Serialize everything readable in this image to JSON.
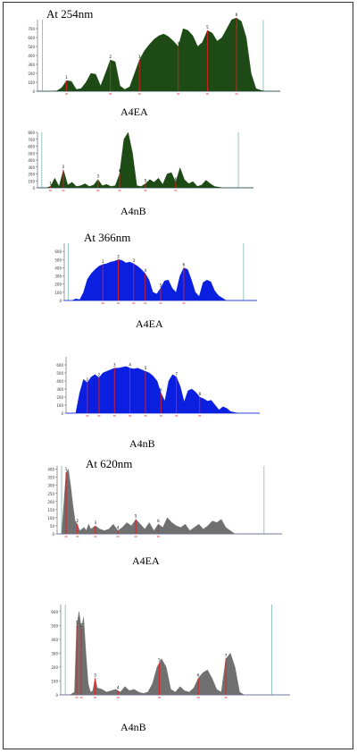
{
  "figure": {
    "headings": [
      "At 254nm",
      "At 366nm",
      "At 620nm"
    ]
  },
  "colors": {
    "green_fill": "#1e4a16",
    "blue_fill": "#0b1fe0",
    "gray_fill": "#707070",
    "baseline": "#3b57d6",
    "marker": "#e02020",
    "vline": "#7ab8b0",
    "axis": "#555555"
  },
  "chart_data": [
    {
      "type": "area",
      "id": "254-A4EA",
      "heading": "At 254nm",
      "caption": "A4EA",
      "fill": "#1e4a16",
      "x": [
        0.0,
        0.05,
        0.08,
        0.1,
        0.12,
        0.14,
        0.16,
        0.18,
        0.2,
        0.22,
        0.24,
        0.26,
        0.28,
        0.3,
        0.32,
        0.34,
        0.36,
        0.38,
        0.4,
        0.42,
        0.44,
        0.46,
        0.48,
        0.5,
        0.52,
        0.54,
        0.56,
        0.58,
        0.6,
        0.62,
        0.64,
        0.66,
        0.68,
        0.7,
        0.72,
        0.74,
        0.76,
        0.78,
        0.8,
        0.82,
        0.84,
        0.86,
        0.88,
        0.9,
        0.92,
        0.94,
        0.96,
        1.0
      ],
      "y": [
        0,
        0,
        5,
        40,
        120,
        110,
        20,
        30,
        100,
        200,
        190,
        60,
        200,
        350,
        330,
        60,
        20,
        50,
        200,
        350,
        450,
        520,
        580,
        620,
        640,
        610,
        560,
        500,
        700,
        680,
        620,
        500,
        550,
        680,
        650,
        560,
        600,
        700,
        800,
        820,
        780,
        600,
        200,
        30,
        10,
        0,
        0,
        0
      ],
      "ylim": [
        0,
        800
      ],
      "yticks": [
        0,
        100,
        200,
        300,
        400,
        500,
        600,
        700
      ],
      "markers": [
        0.12,
        0.3,
        0.42,
        0.58,
        0.7,
        0.82
      ],
      "peak_labels": [
        "1",
        "2",
        "3",
        "4",
        "5",
        "6"
      ],
      "vlines": [
        0.02,
        0.93
      ]
    },
    {
      "type": "area",
      "id": "254-A4nB",
      "caption": "A4nB",
      "fill": "#1e4a16",
      "x": [
        0.0,
        0.04,
        0.06,
        0.08,
        0.1,
        0.12,
        0.14,
        0.16,
        0.18,
        0.2,
        0.22,
        0.24,
        0.26,
        0.28,
        0.3,
        0.32,
        0.34,
        0.36,
        0.38,
        0.4,
        0.42,
        0.44,
        0.46,
        0.48,
        0.5,
        0.52,
        0.54,
        0.56,
        0.58,
        0.6,
        0.62,
        0.64,
        0.66,
        0.68,
        0.7,
        0.72,
        0.74,
        0.76,
        0.78,
        0.8,
        0.82,
        0.84,
        0.86,
        0.88,
        0.9,
        0.92,
        0.95,
        1.0
      ],
      "y": [
        0,
        0,
        20,
        140,
        20,
        260,
        40,
        80,
        20,
        30,
        60,
        20,
        40,
        120,
        30,
        50,
        20,
        30,
        200,
        700,
        800,
        500,
        30,
        20,
        60,
        120,
        80,
        140,
        50,
        200,
        220,
        80,
        290,
        120,
        60,
        90,
        20,
        40,
        110,
        60,
        20,
        10,
        0,
        0,
        0,
        0,
        0,
        0
      ],
      "ylim": [
        0,
        800
      ],
      "yticks": [
        0,
        100,
        200,
        300,
        400,
        500,
        600,
        700,
        800
      ],
      "markers": [
        0.06,
        0.12,
        0.28,
        0.38,
        0.5,
        0.64
      ],
      "peak_labels": [
        "1",
        "2",
        "3",
        "4",
        "5",
        "6"
      ],
      "vlines": [
        0.02,
        0.93
      ]
    },
    {
      "type": "area",
      "id": "366-A4EA",
      "heading": "At 366nm",
      "caption": "A4EA",
      "fill": "#0b1fe0",
      "x": [
        0.0,
        0.04,
        0.06,
        0.08,
        0.1,
        0.12,
        0.14,
        0.16,
        0.18,
        0.2,
        0.22,
        0.24,
        0.26,
        0.28,
        0.3,
        0.32,
        0.34,
        0.36,
        0.38,
        0.4,
        0.42,
        0.44,
        0.46,
        0.48,
        0.5,
        0.52,
        0.54,
        0.56,
        0.58,
        0.6,
        0.62,
        0.64,
        0.66,
        0.68,
        0.7,
        0.72,
        0.74,
        0.76,
        0.78,
        0.8,
        0.82,
        0.84,
        0.86,
        0.88,
        0.9,
        0.92,
        0.95,
        1.0
      ],
      "y": [
        0,
        0,
        20,
        10,
        100,
        260,
        330,
        380,
        420,
        440,
        450,
        470,
        480,
        500,
        490,
        460,
        470,
        450,
        420,
        380,
        330,
        250,
        100,
        80,
        150,
        240,
        250,
        150,
        100,
        300,
        400,
        380,
        250,
        100,
        50,
        220,
        250,
        230,
        120,
        60,
        30,
        0,
        0,
        0,
        0,
        0,
        0,
        0
      ],
      "ylim": [
        0,
        700
      ],
      "yticks": [
        0,
        100,
        200,
        300,
        400,
        500,
        600
      ],
      "markers": [
        0.2,
        0.28,
        0.36,
        0.42,
        0.5,
        0.62
      ],
      "peak_labels": [
        "1",
        "2",
        "3",
        "4",
        "5",
        "6"
      ],
      "vlines": [
        0.02,
        0.93
      ]
    },
    {
      "type": "area",
      "id": "366-A4nB",
      "caption": "A4nB",
      "fill": "#0b1fe0",
      "x": [
        0.0,
        0.05,
        0.07,
        0.09,
        0.11,
        0.13,
        0.15,
        0.17,
        0.19,
        0.21,
        0.23,
        0.25,
        0.27,
        0.29,
        0.31,
        0.33,
        0.35,
        0.37,
        0.39,
        0.41,
        0.43,
        0.45,
        0.47,
        0.49,
        0.51,
        0.53,
        0.55,
        0.57,
        0.59,
        0.61,
        0.63,
        0.65,
        0.67,
        0.69,
        0.71,
        0.73,
        0.75,
        0.77,
        0.79,
        0.81,
        0.83,
        0.85,
        0.87,
        0.89,
        0.91,
        0.93,
        0.95,
        1.0
      ],
      "y": [
        0,
        0,
        250,
        420,
        380,
        450,
        480,
        440,
        500,
        520,
        540,
        560,
        560,
        570,
        580,
        560,
        550,
        560,
        540,
        520,
        500,
        460,
        400,
        250,
        150,
        400,
        480,
        450,
        330,
        140,
        280,
        300,
        260,
        200,
        180,
        150,
        160,
        100,
        40,
        80,
        60,
        20,
        10,
        0,
        0,
        0,
        0,
        0
      ],
      "ylim": [
        0,
        700
      ],
      "yticks": [
        0,
        100,
        200,
        300,
        400,
        500,
        600
      ],
      "markers": [
        0.11,
        0.17,
        0.25,
        0.33,
        0.41,
        0.49,
        0.57,
        0.69
      ],
      "peak_labels": [
        "1",
        "2",
        "3",
        "4",
        "5",
        "6",
        "7",
        "8"
      ],
      "vlines": []
    },
    {
      "type": "area",
      "id": "620-A4EA",
      "heading": "At 620nm",
      "caption": "A4EA",
      "fill": "#707070",
      "x": [
        0.0,
        0.02,
        0.04,
        0.05,
        0.06,
        0.07,
        0.08,
        0.09,
        0.1,
        0.11,
        0.12,
        0.13,
        0.14,
        0.15,
        0.17,
        0.19,
        0.21,
        0.23,
        0.25,
        0.27,
        0.29,
        0.31,
        0.33,
        0.35,
        0.37,
        0.39,
        0.41,
        0.43,
        0.45,
        0.47,
        0.49,
        0.51,
        0.53,
        0.55,
        0.57,
        0.59,
        0.61,
        0.63,
        0.65,
        0.67,
        0.69,
        0.71,
        0.73,
        0.75,
        0.77,
        0.79,
        0.85,
        1.0
      ],
      "y": [
        0,
        0,
        380,
        400,
        300,
        180,
        80,
        60,
        20,
        30,
        40,
        20,
        60,
        30,
        50,
        30,
        20,
        30,
        60,
        20,
        40,
        70,
        50,
        90,
        60,
        30,
        70,
        20,
        60,
        40,
        100,
        70,
        50,
        40,
        60,
        20,
        40,
        60,
        30,
        50,
        80,
        70,
        90,
        40,
        20,
        0,
        0,
        0
      ],
      "ylim": [
        0,
        420
      ],
      "yticks": [
        0,
        50,
        100,
        150,
        200,
        250,
        300,
        350,
        400
      ],
      "markers": [
        0.04,
        0.09,
        0.17,
        0.27,
        0.35,
        0.45
      ],
      "peak_labels": [
        "1",
        "2",
        "3",
        "4",
        "5",
        "6"
      ],
      "vlines": [
        0.02,
        0.92
      ]
    },
    {
      "type": "area",
      "id": "620-A4nB",
      "caption": "A4nB",
      "fill": "#707070",
      "x": [
        0.0,
        0.02,
        0.04,
        0.06,
        0.07,
        0.08,
        0.09,
        0.1,
        0.11,
        0.12,
        0.13,
        0.14,
        0.15,
        0.16,
        0.18,
        0.2,
        0.22,
        0.24,
        0.26,
        0.28,
        0.3,
        0.32,
        0.34,
        0.36,
        0.38,
        0.4,
        0.42,
        0.44,
        0.46,
        0.48,
        0.5,
        0.52,
        0.54,
        0.56,
        0.58,
        0.6,
        0.62,
        0.64,
        0.66,
        0.68,
        0.7,
        0.72,
        0.74,
        0.76,
        0.78,
        0.8,
        0.85,
        1.0
      ],
      "y": [
        0,
        0,
        0,
        20,
        500,
        600,
        480,
        560,
        300,
        80,
        20,
        30,
        120,
        50,
        40,
        20,
        30,
        40,
        20,
        60,
        30,
        40,
        20,
        10,
        20,
        80,
        200,
        260,
        200,
        40,
        20,
        60,
        30,
        20,
        50,
        120,
        160,
        180,
        120,
        40,
        20,
        260,
        300,
        200,
        20,
        0,
        0,
        0
      ],
      "ylim": [
        0,
        650
      ],
      "yticks": [
        0,
        100,
        200,
        300,
        400,
        500,
        600
      ],
      "markers": [
        0.07,
        0.09,
        0.15,
        0.25,
        0.43,
        0.6,
        0.72
      ],
      "peak_labels": [
        "1",
        "2",
        "3",
        "4",
        "5",
        "6",
        "7"
      ],
      "vlines": [
        0.02,
        0.92
      ]
    }
  ]
}
